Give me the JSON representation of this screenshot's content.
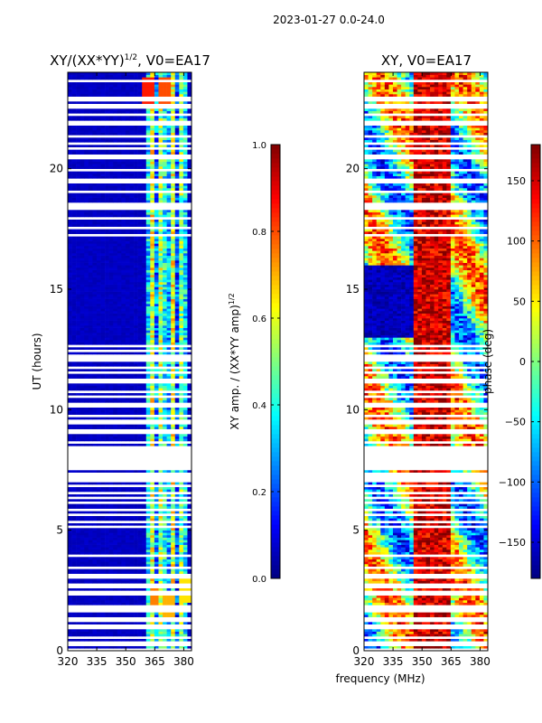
{
  "figure": {
    "suptitle": "2023-01-27 0.0-24.0",
    "xlabel": "frequency (MHz)",
    "colormap": [
      "#00007f",
      "#0000ff",
      "#007fff",
      "#00ffff",
      "#7fff7f",
      "#ffff00",
      "#ff7f00",
      "#ff0000",
      "#7f0000"
    ],
    "nodata_color": "#ffffff",
    "marker_color": "#c0c0c0"
  },
  "chart_data": [
    {
      "type": "heatmap",
      "title_main": "XY/(XX*YY)",
      "title_sup": "1/2",
      "title_rest": ", V0=EA17",
      "xlabel": "",
      "ylabel": "UT (hours)",
      "xlim": [
        320,
        384
      ],
      "ylim": [
        0,
        24
      ],
      "xticks": [
        320,
        335,
        350,
        365,
        380
      ],
      "yticks": [
        0,
        5,
        10,
        15,
        20
      ],
      "zlim": [
        0.0,
        1.0
      ],
      "colorbar": {
        "label_main": "XY amp. / (XX*YY amp)",
        "label_sup": "1/2",
        "ticks": [
          "0.0",
          "0.2",
          "0.4",
          "0.6",
          "0.8",
          "1.0"
        ],
        "tick_values": [
          0.0,
          0.2,
          0.4,
          0.6,
          0.8,
          1.0
        ]
      },
      "background_value": 0.05,
      "rfi_band_mhz": [
        360,
        382
      ],
      "rfi_values": [
        0.35,
        0.5,
        0.6,
        0.25,
        0.55,
        0.4,
        0.3,
        0.6,
        0.45,
        0.2,
        0.5,
        0.35
      ],
      "peak_spots": [
        {
          "t": 23.2,
          "f": 362,
          "v": 0.85
        },
        {
          "t": 23.2,
          "f": 370,
          "v": 0.8
        },
        {
          "t": 2.2,
          "f": 365,
          "v": 0.75
        },
        {
          "t": 1.9,
          "f": 372,
          "v": 0.7
        },
        {
          "t": 2.6,
          "f": 380,
          "v": 0.65
        }
      ]
    },
    {
      "type": "heatmap",
      "title_main": "XY, V0=EA17",
      "title_sup": "",
      "title_rest": "",
      "xlabel": "",
      "ylabel": "",
      "xlim": [
        320,
        384
      ],
      "ylim": [
        0,
        24
      ],
      "xticks": [
        320,
        335,
        350,
        365,
        380
      ],
      "yticks": [
        0,
        5,
        10,
        15,
        20
      ],
      "zlim": [
        -180,
        180
      ],
      "colorbar": {
        "label_main": "phase (deg)",
        "label_sup": "",
        "ticks": [
          "−150",
          "−100",
          "−50",
          "0",
          "50",
          "100",
          "150"
        ],
        "tick_values": [
          -150,
          -100,
          -50,
          0,
          50,
          100,
          150
        ]
      },
      "phase_band_mhz": [
        345,
        365
      ],
      "phase_band_value": 150,
      "low_phase_block_hours": [
        13,
        16
      ],
      "low_phase_value": -160
    }
  ]
}
